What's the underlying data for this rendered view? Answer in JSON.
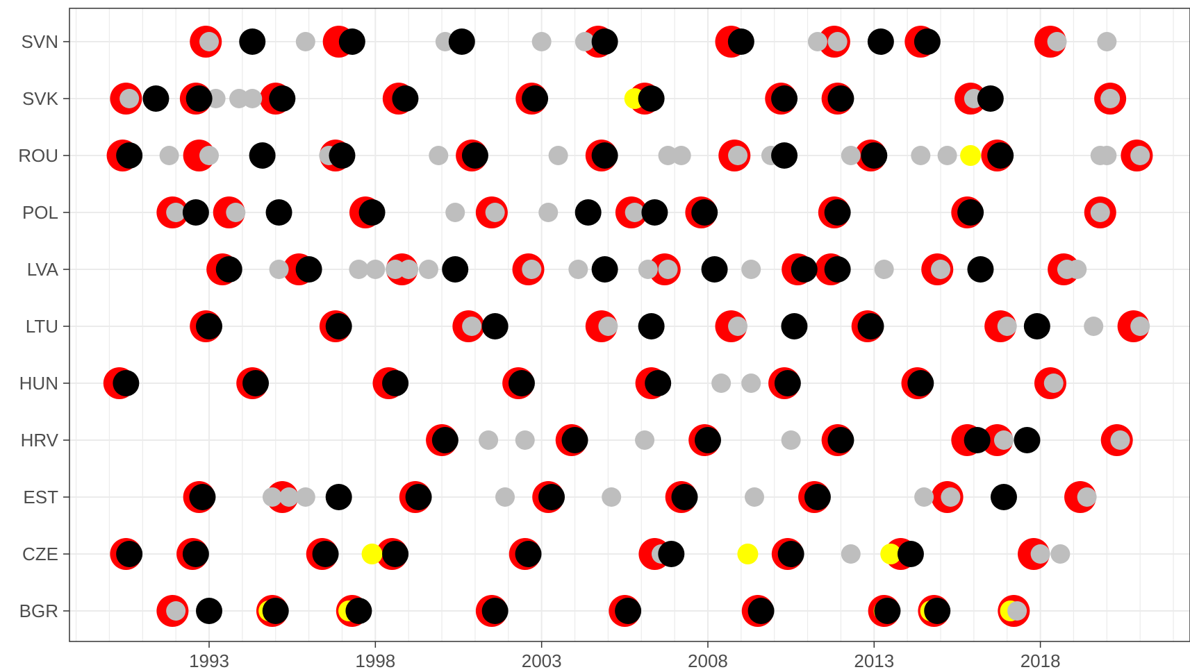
{
  "chart_data": {
    "type": "scatter",
    "title": "",
    "xlabel": "",
    "ylabel": "",
    "xlim": [
      1988.8,
      2022.5
    ],
    "x_ticks": [
      1993,
      1998,
      2003,
      2008,
      2013,
      2018
    ],
    "x_tick_labels": [
      "1993",
      "1998",
      "2003",
      "2008",
      "2013",
      "2018"
    ],
    "categories": [
      "BGR",
      "CZE",
      "EST",
      "HRV",
      "HUN",
      "LTU",
      "LVA",
      "POL",
      "ROU",
      "SVK",
      "SVN"
    ],
    "grid": true,
    "legend": "none",
    "colors": {
      "red": "#ff0000",
      "black": "#000000",
      "grey": "#bebebe",
      "yellow": "#ffff00"
    },
    "series": [
      {
        "color": "#ff0000",
        "points": [
          [
            "SVN",
            1992.9
          ],
          [
            "SVN",
            1996.9
          ],
          [
            "SVN",
            2004.7
          ],
          [
            "SVN",
            2008.7
          ],
          [
            "SVN",
            2011.8
          ],
          [
            "SVN",
            2014.4
          ],
          [
            "SVN",
            2018.3
          ],
          [
            "SVK",
            1990.5
          ],
          [
            "SVK",
            1992.6
          ],
          [
            "SVK",
            1995.0
          ],
          [
            "SVK",
            1998.7
          ],
          [
            "SVK",
            2002.7
          ],
          [
            "SVK",
            2006.1
          ],
          [
            "SVK",
            2010.2
          ],
          [
            "SVK",
            2011.9
          ],
          [
            "SVK",
            2015.9
          ],
          [
            "SVK",
            2020.1
          ],
          [
            "ROU",
            1990.4
          ],
          [
            "ROU",
            1992.7
          ],
          [
            "ROU",
            1996.8
          ],
          [
            "ROU",
            2000.9
          ],
          [
            "ROU",
            2004.8
          ],
          [
            "ROU",
            2008.8
          ],
          [
            "ROU",
            2012.9
          ],
          [
            "ROU",
            2016.7
          ],
          [
            "ROU",
            2020.9
          ],
          [
            "POL",
            1991.9
          ],
          [
            "POL",
            1993.6
          ],
          [
            "POL",
            1997.7
          ],
          [
            "POL",
            2001.5
          ],
          [
            "POL",
            2005.7
          ],
          [
            "POL",
            2007.8
          ],
          [
            "POL",
            2011.8
          ],
          [
            "POL",
            2015.8
          ],
          [
            "POL",
            2019.8
          ],
          [
            "LVA",
            1993.4
          ],
          [
            "LVA",
            1995.7
          ],
          [
            "LVA",
            1998.8
          ],
          [
            "LVA",
            2002.6
          ],
          [
            "LVA",
            2006.7
          ],
          [
            "LVA",
            2010.7
          ],
          [
            "LVA",
            2011.7
          ],
          [
            "LVA",
            2014.9
          ],
          [
            "LVA",
            2018.7
          ],
          [
            "LTU",
            1992.9
          ],
          [
            "LTU",
            1996.8
          ],
          [
            "LTU",
            2000.8
          ],
          [
            "LTU",
            2004.8
          ],
          [
            "LTU",
            2008.7
          ],
          [
            "LTU",
            2012.8
          ],
          [
            "LTU",
            2016.8
          ],
          [
            "LTU",
            2020.8
          ],
          [
            "HUN",
            1990.3
          ],
          [
            "HUN",
            1994.3
          ],
          [
            "HUN",
            1998.4
          ],
          [
            "HUN",
            2002.3
          ],
          [
            "HUN",
            2006.3
          ],
          [
            "HUN",
            2010.3
          ],
          [
            "HUN",
            2014.3
          ],
          [
            "HUN",
            2018.3
          ],
          [
            "HRV",
            2000.0
          ],
          [
            "HRV",
            2003.9
          ],
          [
            "HRV",
            2007.9
          ],
          [
            "HRV",
            2011.9
          ],
          [
            "HRV",
            2015.8
          ],
          [
            "HRV",
            2016.7
          ],
          [
            "HRV",
            2020.3
          ],
          [
            "EST",
            1992.7
          ],
          [
            "EST",
            1995.2
          ],
          [
            "EST",
            1999.2
          ],
          [
            "EST",
            2003.2
          ],
          [
            "EST",
            2007.2
          ],
          [
            "EST",
            2011.2
          ],
          [
            "EST",
            2015.2
          ],
          [
            "EST",
            2019.2
          ],
          [
            "CZE",
            1990.5
          ],
          [
            "CZE",
            1992.5
          ],
          [
            "CZE",
            1996.4
          ],
          [
            "CZE",
            1998.5
          ],
          [
            "CZE",
            2002.5
          ],
          [
            "CZE",
            2006.4
          ],
          [
            "CZE",
            2010.4
          ],
          [
            "CZE",
            2013.8
          ],
          [
            "CZE",
            2017.8
          ],
          [
            "BGR",
            1991.9
          ],
          [
            "BGR",
            1994.9
          ],
          [
            "BGR",
            1997.3
          ],
          [
            "BGR",
            2001.5
          ],
          [
            "BGR",
            2005.5
          ],
          [
            "BGR",
            2009.5
          ],
          [
            "BGR",
            2013.3
          ],
          [
            "BGR",
            2014.8
          ],
          [
            "BGR",
            2017.2
          ]
        ]
      },
      {
        "color": "#ffff00",
        "points": [
          [
            "SVK",
            2005.8
          ],
          [
            "ROU",
            2015.9
          ],
          [
            "CZE",
            1997.9
          ],
          [
            "CZE",
            2009.2
          ],
          [
            "CZE",
            2013.5
          ],
          [
            "BGR",
            1994.8
          ],
          [
            "BGR",
            1997.2
          ],
          [
            "BGR",
            2013.3
          ],
          [
            "BGR",
            2014.7
          ],
          [
            "BGR",
            2017.1
          ]
        ]
      },
      {
        "color": "#bebebe",
        "points": [
          [
            "SVN",
            1993.0
          ],
          [
            "SVN",
            1995.9
          ],
          [
            "SVN",
            2000.1
          ],
          [
            "SVN",
            2003.0
          ],
          [
            "SVN",
            2004.3
          ],
          [
            "SVN",
            2011.3
          ],
          [
            "SVN",
            2011.9
          ],
          [
            "SVN",
            2018.5
          ],
          [
            "SVN",
            2020.0
          ],
          [
            "SVK",
            1990.6
          ],
          [
            "SVK",
            1993.2
          ],
          [
            "SVK",
            1993.9
          ],
          [
            "SVK",
            1994.3
          ],
          [
            "SVK",
            2016.0
          ],
          [
            "SVK",
            2020.1
          ],
          [
            "ROU",
            1991.8
          ],
          [
            "ROU",
            1993.0
          ],
          [
            "ROU",
            1996.6
          ],
          [
            "ROU",
            1999.9
          ],
          [
            "ROU",
            2003.5
          ],
          [
            "ROU",
            2006.8
          ],
          [
            "ROU",
            2007.2
          ],
          [
            "ROU",
            2008.9
          ],
          [
            "ROU",
            2009.9
          ],
          [
            "ROU",
            2012.3
          ],
          [
            "ROU",
            2014.4
          ],
          [
            "ROU",
            2015.2
          ],
          [
            "ROU",
            2019.8
          ],
          [
            "ROU",
            2020.0
          ],
          [
            "ROU",
            2021.0
          ],
          [
            "POL",
            1992.0
          ],
          [
            "POL",
            1993.8
          ],
          [
            "POL",
            2000.4
          ],
          [
            "POL",
            2001.6
          ],
          [
            "POL",
            2003.2
          ],
          [
            "POL",
            2005.8
          ],
          [
            "POL",
            2019.8
          ],
          [
            "LVA",
            1995.1
          ],
          [
            "LVA",
            1997.5
          ],
          [
            "LVA",
            1998.0
          ],
          [
            "LVA",
            1998.6
          ],
          [
            "LVA",
            1999.0
          ],
          [
            "LVA",
            1999.6
          ],
          [
            "LVA",
            2002.7
          ],
          [
            "LVA",
            2004.1
          ],
          [
            "LVA",
            2006.2
          ],
          [
            "LVA",
            2006.8
          ],
          [
            "LVA",
            2008.3
          ],
          [
            "LVA",
            2009.3
          ],
          [
            "LVA",
            2013.3
          ],
          [
            "LVA",
            2015.0
          ],
          [
            "LVA",
            2018.8
          ],
          [
            "LVA",
            2019.1
          ],
          [
            "LTU",
            2000.9
          ],
          [
            "LTU",
            2005.0
          ],
          [
            "LTU",
            2006.2
          ],
          [
            "LTU",
            2008.9
          ],
          [
            "LTU",
            2017.0
          ],
          [
            "LTU",
            2019.6
          ],
          [
            "LTU",
            2021.0
          ],
          [
            "HUN",
            2008.4
          ],
          [
            "HUN",
            2009.3
          ],
          [
            "HUN",
            2018.4
          ],
          [
            "HRV",
            2001.4
          ],
          [
            "HRV",
            2002.5
          ],
          [
            "HRV",
            2006.1
          ],
          [
            "HRV",
            2010.5
          ],
          [
            "HRV",
            2016.9
          ],
          [
            "HRV",
            2020.4
          ],
          [
            "EST",
            1994.9
          ],
          [
            "EST",
            1995.4
          ],
          [
            "EST",
            1995.9
          ],
          [
            "EST",
            2001.9
          ],
          [
            "EST",
            2005.1
          ],
          [
            "EST",
            2009.4
          ],
          [
            "EST",
            2014.5
          ],
          [
            "EST",
            2015.3
          ],
          [
            "EST",
            2019.4
          ],
          [
            "CZE",
            2006.6
          ],
          [
            "CZE",
            2012.3
          ],
          [
            "CZE",
            2018.0
          ],
          [
            "CZE",
            2018.6
          ],
          [
            "BGR",
            1992.0
          ],
          [
            "BGR",
            2017.3
          ]
        ]
      },
      {
        "color": "#000000",
        "points": [
          [
            "SVN",
            1994.3
          ],
          [
            "SVN",
            1997.3
          ],
          [
            "SVN",
            2000.6
          ],
          [
            "SVN",
            2004.9
          ],
          [
            "SVN",
            2009.0
          ],
          [
            "SVN",
            2013.2
          ],
          [
            "SVN",
            2014.6
          ],
          [
            "SVK",
            1991.4
          ],
          [
            "SVK",
            1992.7
          ],
          [
            "SVK",
            1995.2
          ],
          [
            "SVK",
            1998.9
          ],
          [
            "SVK",
            2002.8
          ],
          [
            "SVK",
            2006.3
          ],
          [
            "SVK",
            2010.3
          ],
          [
            "SVK",
            2012.0
          ],
          [
            "SVK",
            2016.5
          ],
          [
            "ROU",
            1990.6
          ],
          [
            "ROU",
            1994.6
          ],
          [
            "ROU",
            1997.0
          ],
          [
            "ROU",
            2001.0
          ],
          [
            "ROU",
            2004.9
          ],
          [
            "ROU",
            2010.3
          ],
          [
            "ROU",
            2013.0
          ],
          [
            "ROU",
            2016.8
          ],
          [
            "POL",
            1992.6
          ],
          [
            "POL",
            1995.1
          ],
          [
            "POL",
            1997.9
          ],
          [
            "POL",
            2004.4
          ],
          [
            "POL",
            2006.4
          ],
          [
            "POL",
            2007.9
          ],
          [
            "POL",
            2011.9
          ],
          [
            "POL",
            2015.9
          ],
          [
            "LVA",
            1993.6
          ],
          [
            "LVA",
            1996.0
          ],
          [
            "LVA",
            2000.4
          ],
          [
            "LVA",
            2004.9
          ],
          [
            "LVA",
            2008.2
          ],
          [
            "LVA",
            2010.9
          ],
          [
            "LVA",
            2011.9
          ],
          [
            "LVA",
            2016.2
          ],
          [
            "LTU",
            1993.0
          ],
          [
            "LTU",
            1996.9
          ],
          [
            "LTU",
            2001.6
          ],
          [
            "LTU",
            2006.3
          ],
          [
            "LTU",
            2010.6
          ],
          [
            "LTU",
            2012.9
          ],
          [
            "LTU",
            2017.9
          ],
          [
            "HUN",
            1990.5
          ],
          [
            "HUN",
            1994.4
          ],
          [
            "HUN",
            1998.6
          ],
          [
            "HUN",
            2002.4
          ],
          [
            "HUN",
            2006.5
          ],
          [
            "HUN",
            2010.4
          ],
          [
            "HUN",
            2014.4
          ],
          [
            "HRV",
            2000.1
          ],
          [
            "HRV",
            2004.0
          ],
          [
            "HRV",
            2008.0
          ],
          [
            "HRV",
            2012.0
          ],
          [
            "HRV",
            2016.1
          ],
          [
            "HRV",
            2017.6
          ],
          [
            "EST",
            1992.8
          ],
          [
            "EST",
            1996.9
          ],
          [
            "EST",
            1999.3
          ],
          [
            "EST",
            2003.3
          ],
          [
            "EST",
            2007.3
          ],
          [
            "EST",
            2011.3
          ],
          [
            "EST",
            2016.9
          ],
          [
            "CZE",
            1990.6
          ],
          [
            "CZE",
            1992.6
          ],
          [
            "CZE",
            1996.5
          ],
          [
            "CZE",
            1998.6
          ],
          [
            "CZE",
            2002.6
          ],
          [
            "CZE",
            2006.9
          ],
          [
            "CZE",
            2010.5
          ],
          [
            "CZE",
            2014.1
          ],
          [
            "BGR",
            1993.0
          ],
          [
            "BGR",
            1995.0
          ],
          [
            "BGR",
            1997.5
          ],
          [
            "BGR",
            2001.6
          ],
          [
            "BGR",
            2005.6
          ],
          [
            "BGR",
            2009.6
          ],
          [
            "BGR",
            2013.4
          ],
          [
            "BGR",
            2014.9
          ]
        ]
      }
    ]
  }
}
